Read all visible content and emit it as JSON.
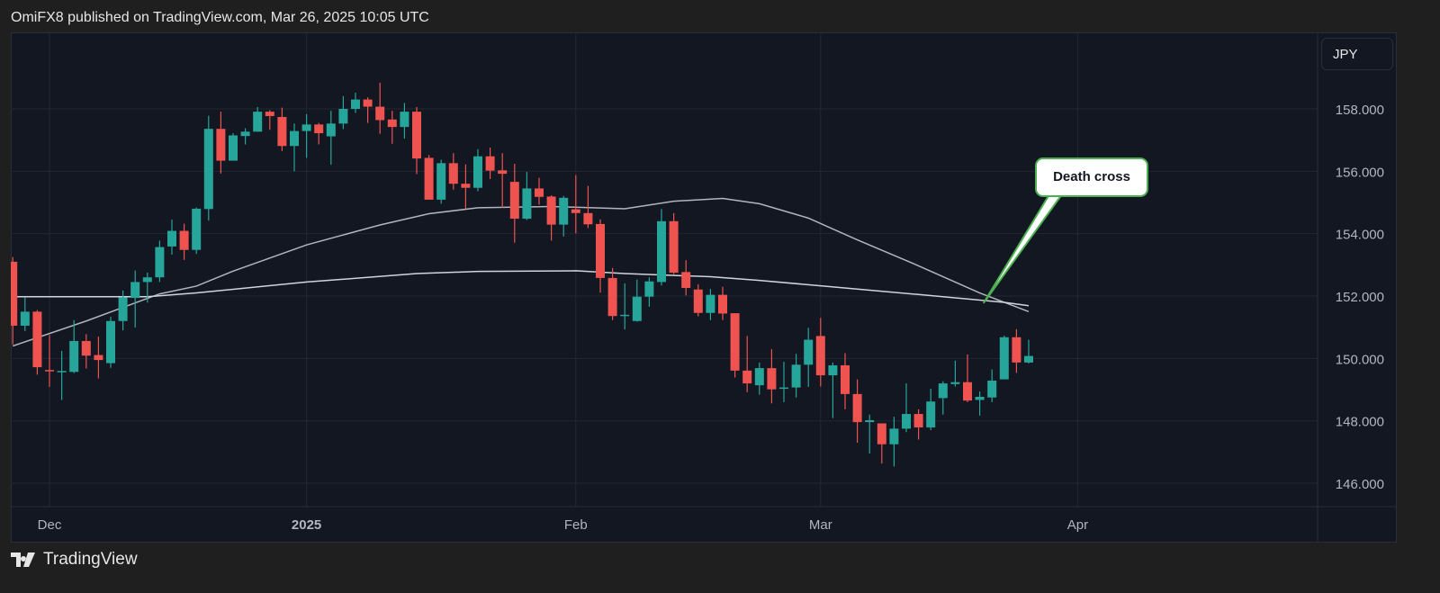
{
  "header": {
    "text": "OmiFX8 published on TradingView.com, Mar 26, 2025 10:05 UTC"
  },
  "footer": {
    "brand": "TradingView"
  },
  "price_scale": {
    "currency": "JPY"
  },
  "colors": {
    "up": "#26a69a",
    "down": "#ef5350",
    "ma_fast": "#b2b5be",
    "ma_slow": "#d1d4dc",
    "callout_border": "#4caf50",
    "background": "#131722",
    "grid": "#232733"
  },
  "chart_data": {
    "type": "candlestick",
    "title": "",
    "ylim": [
      145.2,
      159.6
    ],
    "grid": true,
    "y_ticks": [
      "158.000",
      "156.000",
      "154.000",
      "152.000",
      "150.000",
      "148.000",
      "146.000"
    ],
    "y_tick_values": [
      158,
      156,
      154,
      152,
      150,
      148,
      146
    ],
    "x_ticks": [
      {
        "label": "Dec",
        "date": "2024-12-02",
        "bold": false
      },
      {
        "label": "2025",
        "date": "2025-01-02",
        "bold": true
      },
      {
        "label": "Feb",
        "date": "2025-02-03",
        "bold": false
      },
      {
        "label": "Mar",
        "date": "2025-03-03",
        "bold": false
      },
      {
        "label": "Apr",
        "date": "2025-04-01",
        "bold": false
      }
    ],
    "ohlc_columns": [
      "date",
      "open",
      "high",
      "low",
      "close"
    ],
    "candles": [
      [
        "2024-11-27",
        153.1,
        153.25,
        150.45,
        151.05
      ],
      [
        "2024-11-28",
        151.05,
        151.96,
        150.88,
        151.5
      ],
      [
        "2024-11-29",
        151.5,
        151.55,
        149.48,
        149.72
      ],
      [
        "2024-12-02",
        149.63,
        150.75,
        149.09,
        149.59
      ],
      [
        "2024-12-03",
        149.58,
        150.24,
        148.67,
        149.6
      ],
      [
        "2024-12-04",
        149.57,
        151.23,
        149.53,
        150.56
      ],
      [
        "2024-12-05",
        150.56,
        150.78,
        149.68,
        150.09
      ],
      [
        "2024-12-06",
        150.11,
        150.7,
        149.36,
        149.95
      ],
      [
        "2024-12-09",
        149.85,
        151.34,
        149.7,
        151.2
      ],
      [
        "2024-12-10",
        151.2,
        152.18,
        150.9,
        151.96
      ],
      [
        "2024-12-11",
        151.94,
        152.82,
        150.99,
        152.45
      ],
      [
        "2024-12-12",
        152.45,
        152.75,
        151.79,
        152.6
      ],
      [
        "2024-12-13",
        152.6,
        153.78,
        152.45,
        153.57
      ],
      [
        "2024-12-16",
        153.59,
        154.45,
        153.33,
        154.09
      ],
      [
        "2024-12-17",
        154.09,
        154.32,
        153.16,
        153.48
      ],
      [
        "2024-12-18",
        153.48,
        154.84,
        153.35,
        154.8
      ],
      [
        "2024-12-19",
        154.79,
        157.78,
        154.42,
        157.36
      ],
      [
        "2024-12-20",
        157.36,
        157.91,
        155.93,
        156.34
      ],
      [
        "2024-12-23",
        156.34,
        157.22,
        156.34,
        157.15
      ],
      [
        "2024-12-24",
        157.13,
        157.38,
        156.86,
        157.27
      ],
      [
        "2024-12-26",
        157.27,
        158.06,
        157.27,
        157.91
      ],
      [
        "2024-12-27",
        157.91,
        157.96,
        157.33,
        157.77
      ],
      [
        "2024-12-30",
        157.74,
        158.04,
        156.65,
        156.81
      ],
      [
        "2024-12-31",
        156.81,
        157.53,
        156.0,
        157.29
      ],
      [
        "2025-01-02",
        157.29,
        157.83,
        156.43,
        157.5
      ],
      [
        "2025-01-03",
        157.5,
        157.55,
        156.86,
        157.22
      ],
      [
        "2025-01-06",
        157.12,
        157.94,
        156.21,
        157.53
      ],
      [
        "2025-01-07",
        157.53,
        158.41,
        157.35,
        158.0
      ],
      [
        "2025-01-08",
        158.0,
        158.52,
        157.87,
        158.3
      ],
      [
        "2025-01-09",
        158.3,
        158.37,
        157.55,
        158.07
      ],
      [
        "2025-01-10",
        158.07,
        158.84,
        157.2,
        157.64
      ],
      [
        "2025-01-13",
        157.66,
        157.94,
        156.88,
        157.42
      ],
      [
        "2025-01-14",
        157.42,
        158.19,
        157.05,
        157.91
      ],
      [
        "2025-01-15",
        157.91,
        158.06,
        155.91,
        156.41
      ],
      [
        "2025-01-16",
        156.43,
        156.52,
        155.09,
        155.09
      ],
      [
        "2025-01-17",
        155.09,
        156.37,
        154.96,
        156.26
      ],
      [
        "2025-01-20",
        156.26,
        156.58,
        155.41,
        155.6
      ],
      [
        "2025-01-21",
        155.6,
        156.22,
        154.79,
        155.47
      ],
      [
        "2025-01-22",
        155.47,
        156.71,
        155.36,
        156.48
      ],
      [
        "2025-01-23",
        156.48,
        156.76,
        155.75,
        156.02
      ],
      [
        "2025-01-24",
        156.03,
        156.58,
        154.83,
        155.92
      ],
      [
        "2025-01-27",
        155.66,
        156.24,
        153.71,
        154.48
      ],
      [
        "2025-01-28",
        154.48,
        155.98,
        154.44,
        155.45
      ],
      [
        "2025-01-29",
        155.45,
        155.79,
        154.93,
        155.18
      ],
      [
        "2025-01-30",
        155.19,
        155.23,
        153.78,
        154.29
      ],
      [
        "2025-01-31",
        154.29,
        155.21,
        153.91,
        155.15
      ],
      [
        "2025-02-03",
        154.78,
        155.88,
        154.01,
        154.66
      ],
      [
        "2025-02-04",
        154.66,
        155.53,
        154.18,
        154.3
      ],
      [
        "2025-02-05",
        154.31,
        154.46,
        152.11,
        152.58
      ],
      [
        "2025-02-06",
        152.58,
        152.9,
        151.23,
        151.36
      ],
      [
        "2025-02-07",
        151.36,
        152.41,
        150.93,
        151.4
      ],
      [
        "2025-02-10",
        151.2,
        152.53,
        151.18,
        151.98
      ],
      [
        "2025-02-11",
        151.98,
        152.6,
        151.66,
        152.47
      ],
      [
        "2025-02-12",
        152.45,
        154.79,
        152.34,
        154.4
      ],
      [
        "2025-02-13",
        154.4,
        154.66,
        152.7,
        152.75
      ],
      [
        "2025-02-14",
        152.77,
        153.15,
        152.02,
        152.26
      ],
      [
        "2025-02-17",
        152.21,
        152.38,
        151.35,
        151.46
      ],
      [
        "2025-02-18",
        151.46,
        152.23,
        151.23,
        152.04
      ],
      [
        "2025-02-19",
        152.04,
        152.3,
        151.23,
        151.44
      ],
      [
        "2025-02-20",
        151.45,
        151.45,
        149.39,
        149.61
      ],
      [
        "2025-02-21",
        149.61,
        150.72,
        148.92,
        149.2
      ],
      [
        "2025-02-24",
        149.14,
        149.87,
        148.84,
        149.69
      ],
      [
        "2025-02-25",
        149.69,
        150.3,
        148.56,
        149.01
      ],
      [
        "2025-02-26",
        149.03,
        149.89,
        148.6,
        149.07
      ],
      [
        "2025-02-27",
        149.07,
        150.15,
        148.75,
        149.8
      ],
      [
        "2025-02-28",
        149.8,
        150.98,
        149.09,
        150.6
      ],
      [
        "2025-03-03",
        150.72,
        151.3,
        149.1,
        149.46
      ],
      [
        "2025-03-04",
        149.46,
        149.87,
        148.09,
        149.78
      ],
      [
        "2025-03-05",
        149.78,
        150.17,
        148.37,
        148.86
      ],
      [
        "2025-03-06",
        148.86,
        149.33,
        147.3,
        147.96
      ],
      [
        "2025-03-07",
        147.96,
        148.2,
        146.95,
        148.02
      ],
      [
        "2025-03-10",
        147.92,
        147.92,
        146.63,
        147.25
      ],
      [
        "2025-03-11",
        147.25,
        148.13,
        146.54,
        147.75
      ],
      [
        "2025-03-12",
        147.75,
        149.2,
        147.64,
        148.22
      ],
      [
        "2025-03-13",
        148.22,
        148.37,
        147.4,
        147.79
      ],
      [
        "2025-03-14",
        147.79,
        149.03,
        147.7,
        148.62
      ],
      [
        "2025-03-17",
        148.73,
        149.27,
        148.2,
        149.2
      ],
      [
        "2025-03-18",
        149.18,
        149.93,
        149.1,
        149.24
      ],
      [
        "2025-03-19",
        149.24,
        150.13,
        148.6,
        148.65
      ],
      [
        "2025-03-20",
        148.67,
        148.94,
        148.17,
        148.77
      ],
      [
        "2025-03-21",
        148.75,
        149.65,
        148.6,
        149.29
      ],
      [
        "2025-03-24",
        149.33,
        150.73,
        149.33,
        150.68
      ],
      [
        "2025-03-25",
        150.68,
        150.94,
        149.54,
        149.87
      ],
      [
        "2025-03-26",
        149.87,
        150.6,
        149.84,
        150.08
      ]
    ],
    "lines": [
      {
        "points": [
          [
            "2024-11-27",
            150.4
          ],
          [
            "2024-12-05",
            151.2
          ],
          [
            "2024-12-13",
            152.07
          ],
          [
            "2024-12-18",
            152.32
          ],
          [
            "2024-12-23",
            152.8
          ],
          [
            "2025-01-02",
            153.64
          ],
          [
            "2025-01-10",
            154.28
          ],
          [
            "2025-01-16",
            154.64
          ],
          [
            "2025-01-22",
            154.83
          ],
          [
            "2025-01-30",
            154.87
          ],
          [
            "2025-02-07",
            154.8
          ],
          [
            "2025-02-13",
            155.04
          ],
          [
            "2025-02-19",
            155.13
          ],
          [
            "2025-02-24",
            154.96
          ],
          [
            "2025-02-28",
            154.5
          ],
          [
            "2025-03-06",
            153.8
          ],
          [
            "2025-03-13",
            152.97
          ],
          [
            "2025-03-20",
            152.1
          ],
          [
            "2025-03-24",
            151.8
          ],
          [
            "2025-03-26",
            151.5
          ]
        ]
      },
      {
        "points": [
          [
            "2024-11-27",
            151.98
          ],
          [
            "2024-12-12",
            151.98
          ],
          [
            "2024-12-18",
            152.1
          ],
          [
            "2025-01-02",
            152.45
          ],
          [
            "2025-01-15",
            152.72
          ],
          [
            "2025-01-22",
            152.79
          ],
          [
            "2025-02-03",
            152.81
          ],
          [
            "2025-02-07",
            152.72
          ],
          [
            "2025-02-18",
            152.62
          ],
          [
            "2025-02-24",
            152.5
          ],
          [
            "2025-03-03",
            152.33
          ],
          [
            "2025-03-13",
            152.05
          ],
          [
            "2025-03-24",
            151.8
          ],
          [
            "2025-03-26",
            151.69
          ]
        ]
      }
    ],
    "annotations": [
      {
        "text": "Death cross",
        "date": "2025-03-24",
        "price": 151.8
      }
    ]
  }
}
